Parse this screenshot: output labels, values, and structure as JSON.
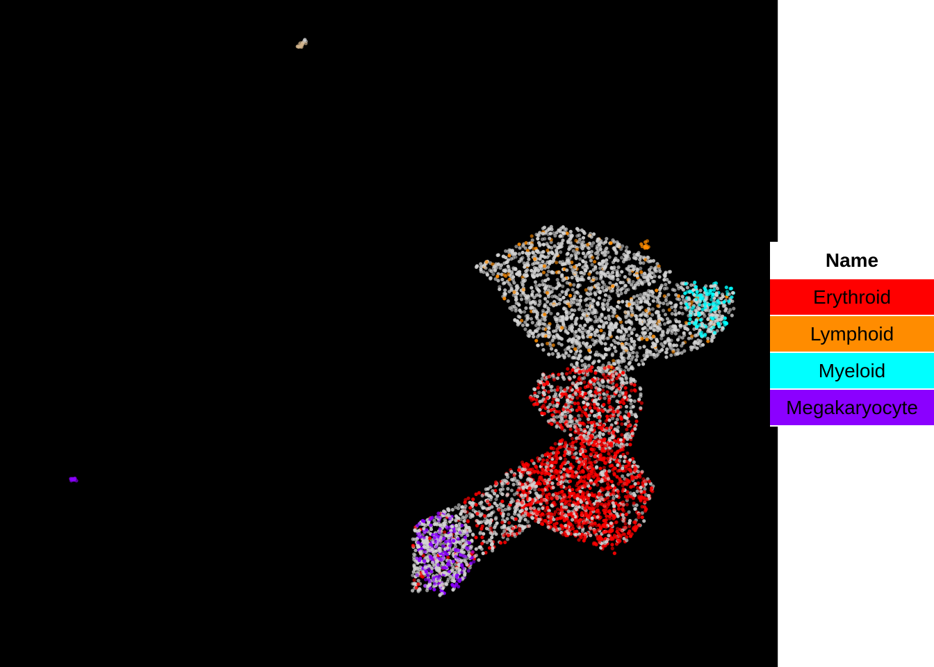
{
  "chart_data": {
    "type": "scatter",
    "title": "",
    "xlabel": "",
    "ylabel": "",
    "background": "#000000",
    "grid": false,
    "axes_visible": false,
    "xlim": [
      0,
      100
    ],
    "ylim": [
      0,
      100
    ],
    "legend": {
      "title": "Name",
      "placement": "right",
      "entries": [
        {
          "name": "Erythroid",
          "color": "#ff0000"
        },
        {
          "name": "Lymphoid",
          "color": "#ff8c00"
        },
        {
          "name": "Myeloid",
          "color": "#00ffff"
        },
        {
          "name": "Megakaryocyte",
          "color": "#8b00ff"
        }
      ]
    },
    "default_point_color": "#d3d3d3",
    "regions": [
      {
        "label": "upper-lobe",
        "color": "#d3d3d3",
        "tint": "#ff8c00",
        "tint_fraction": 0.06,
        "polygon": [
          [
            61,
            60
          ],
          [
            66,
            63
          ],
          [
            70,
            66
          ],
          [
            74,
            66
          ],
          [
            79,
            64
          ],
          [
            84,
            61
          ],
          [
            89,
            57
          ],
          [
            93,
            56
          ],
          [
            94,
            55
          ],
          [
            92,
            49
          ],
          [
            88,
            47
          ],
          [
            84,
            46
          ],
          [
            80,
            44
          ],
          [
            76,
            44
          ],
          [
            70,
            47
          ],
          [
            66,
            52
          ],
          [
            64,
            57
          ]
        ],
        "n": 1900
      },
      {
        "label": "myeloid-tip",
        "color": "#00ffff",
        "tint": "#d3d3d3",
        "tint_fraction": 0.35,
        "polygon": [
          [
            88,
            57.5
          ],
          [
            91,
            58
          ],
          [
            94.5,
            57
          ],
          [
            94.5,
            53.5
          ],
          [
            92.5,
            50
          ],
          [
            90,
            49.5
          ],
          [
            88,
            52
          ]
        ],
        "n": 180
      },
      {
        "label": "middle-band",
        "color": "#d3d3d3",
        "tint": "#ff0000",
        "tint_fraction": 0.45,
        "polygon": [
          [
            69,
            44
          ],
          [
            74,
            45
          ],
          [
            79,
            45
          ],
          [
            83,
            42
          ],
          [
            82,
            37
          ],
          [
            81,
            33
          ],
          [
            76,
            33
          ],
          [
            71,
            36
          ],
          [
            68,
            40
          ]
        ],
        "n": 700
      },
      {
        "label": "erythroid-cluster",
        "color": "#ff0000",
        "tint": "#d3d3d3",
        "tint_fraction": 0.25,
        "polygon": [
          [
            67,
            30
          ],
          [
            72,
            34
          ],
          [
            77,
            35
          ],
          [
            81,
            32
          ],
          [
            84,
            27
          ],
          [
            83,
            22
          ],
          [
            79,
            17
          ],
          [
            74,
            19
          ],
          [
            70,
            21
          ],
          [
            66,
            24
          ]
        ],
        "n": 1300
      },
      {
        "label": "lower-arm",
        "color": "#d3d3d3",
        "tint": "#ff0000",
        "tint_fraction": 0.2,
        "polygon": [
          [
            53,
            21
          ],
          [
            58,
            24
          ],
          [
            63,
            27
          ],
          [
            67,
            31
          ],
          [
            70,
            25
          ],
          [
            68,
            21
          ],
          [
            65,
            18
          ],
          [
            60,
            15
          ],
          [
            57,
            12
          ],
          [
            53,
            11
          ]
        ],
        "n": 650
      },
      {
        "label": "megakaryocyte-tip",
        "color": "#8b00ff",
        "tint": "#d3d3d3",
        "tint_fraction": 0.55,
        "polygon": [
          [
            53.5,
            21.5
          ],
          [
            57,
            23.5
          ],
          [
            60,
            21
          ],
          [
            61,
            16
          ],
          [
            59,
            12
          ],
          [
            56.5,
            10.5
          ],
          [
            53.5,
            13
          ]
        ],
        "n": 420
      },
      {
        "label": "small-top-cluster",
        "color": "#d2b48c",
        "tint": "#d3d3d3",
        "tint_fraction": 0.4,
        "polygon": [
          [
            38.2,
            93
          ],
          [
            39.2,
            94.4
          ],
          [
            39.6,
            93.6
          ],
          [
            38.8,
            92.8
          ]
        ],
        "n": 16
      },
      {
        "label": "small-left-cluster",
        "color": "#8b00ff",
        "tint": "#8b00ff",
        "tint_fraction": 0,
        "polygon": [
          [
            9,
            28.3
          ],
          [
            9.8,
            28.3
          ],
          [
            9.9,
            27.9
          ],
          [
            9.1,
            27.9
          ]
        ],
        "n": 10
      },
      {
        "label": "lymphoid-spot",
        "color": "#ff8c00",
        "tint": "#ff8c00",
        "tint_fraction": 0,
        "polygon": [
          [
            82.3,
            63.5
          ],
          [
            83.4,
            64
          ],
          [
            83.6,
            63
          ],
          [
            82.6,
            62.6
          ]
        ],
        "n": 10
      }
    ]
  }
}
